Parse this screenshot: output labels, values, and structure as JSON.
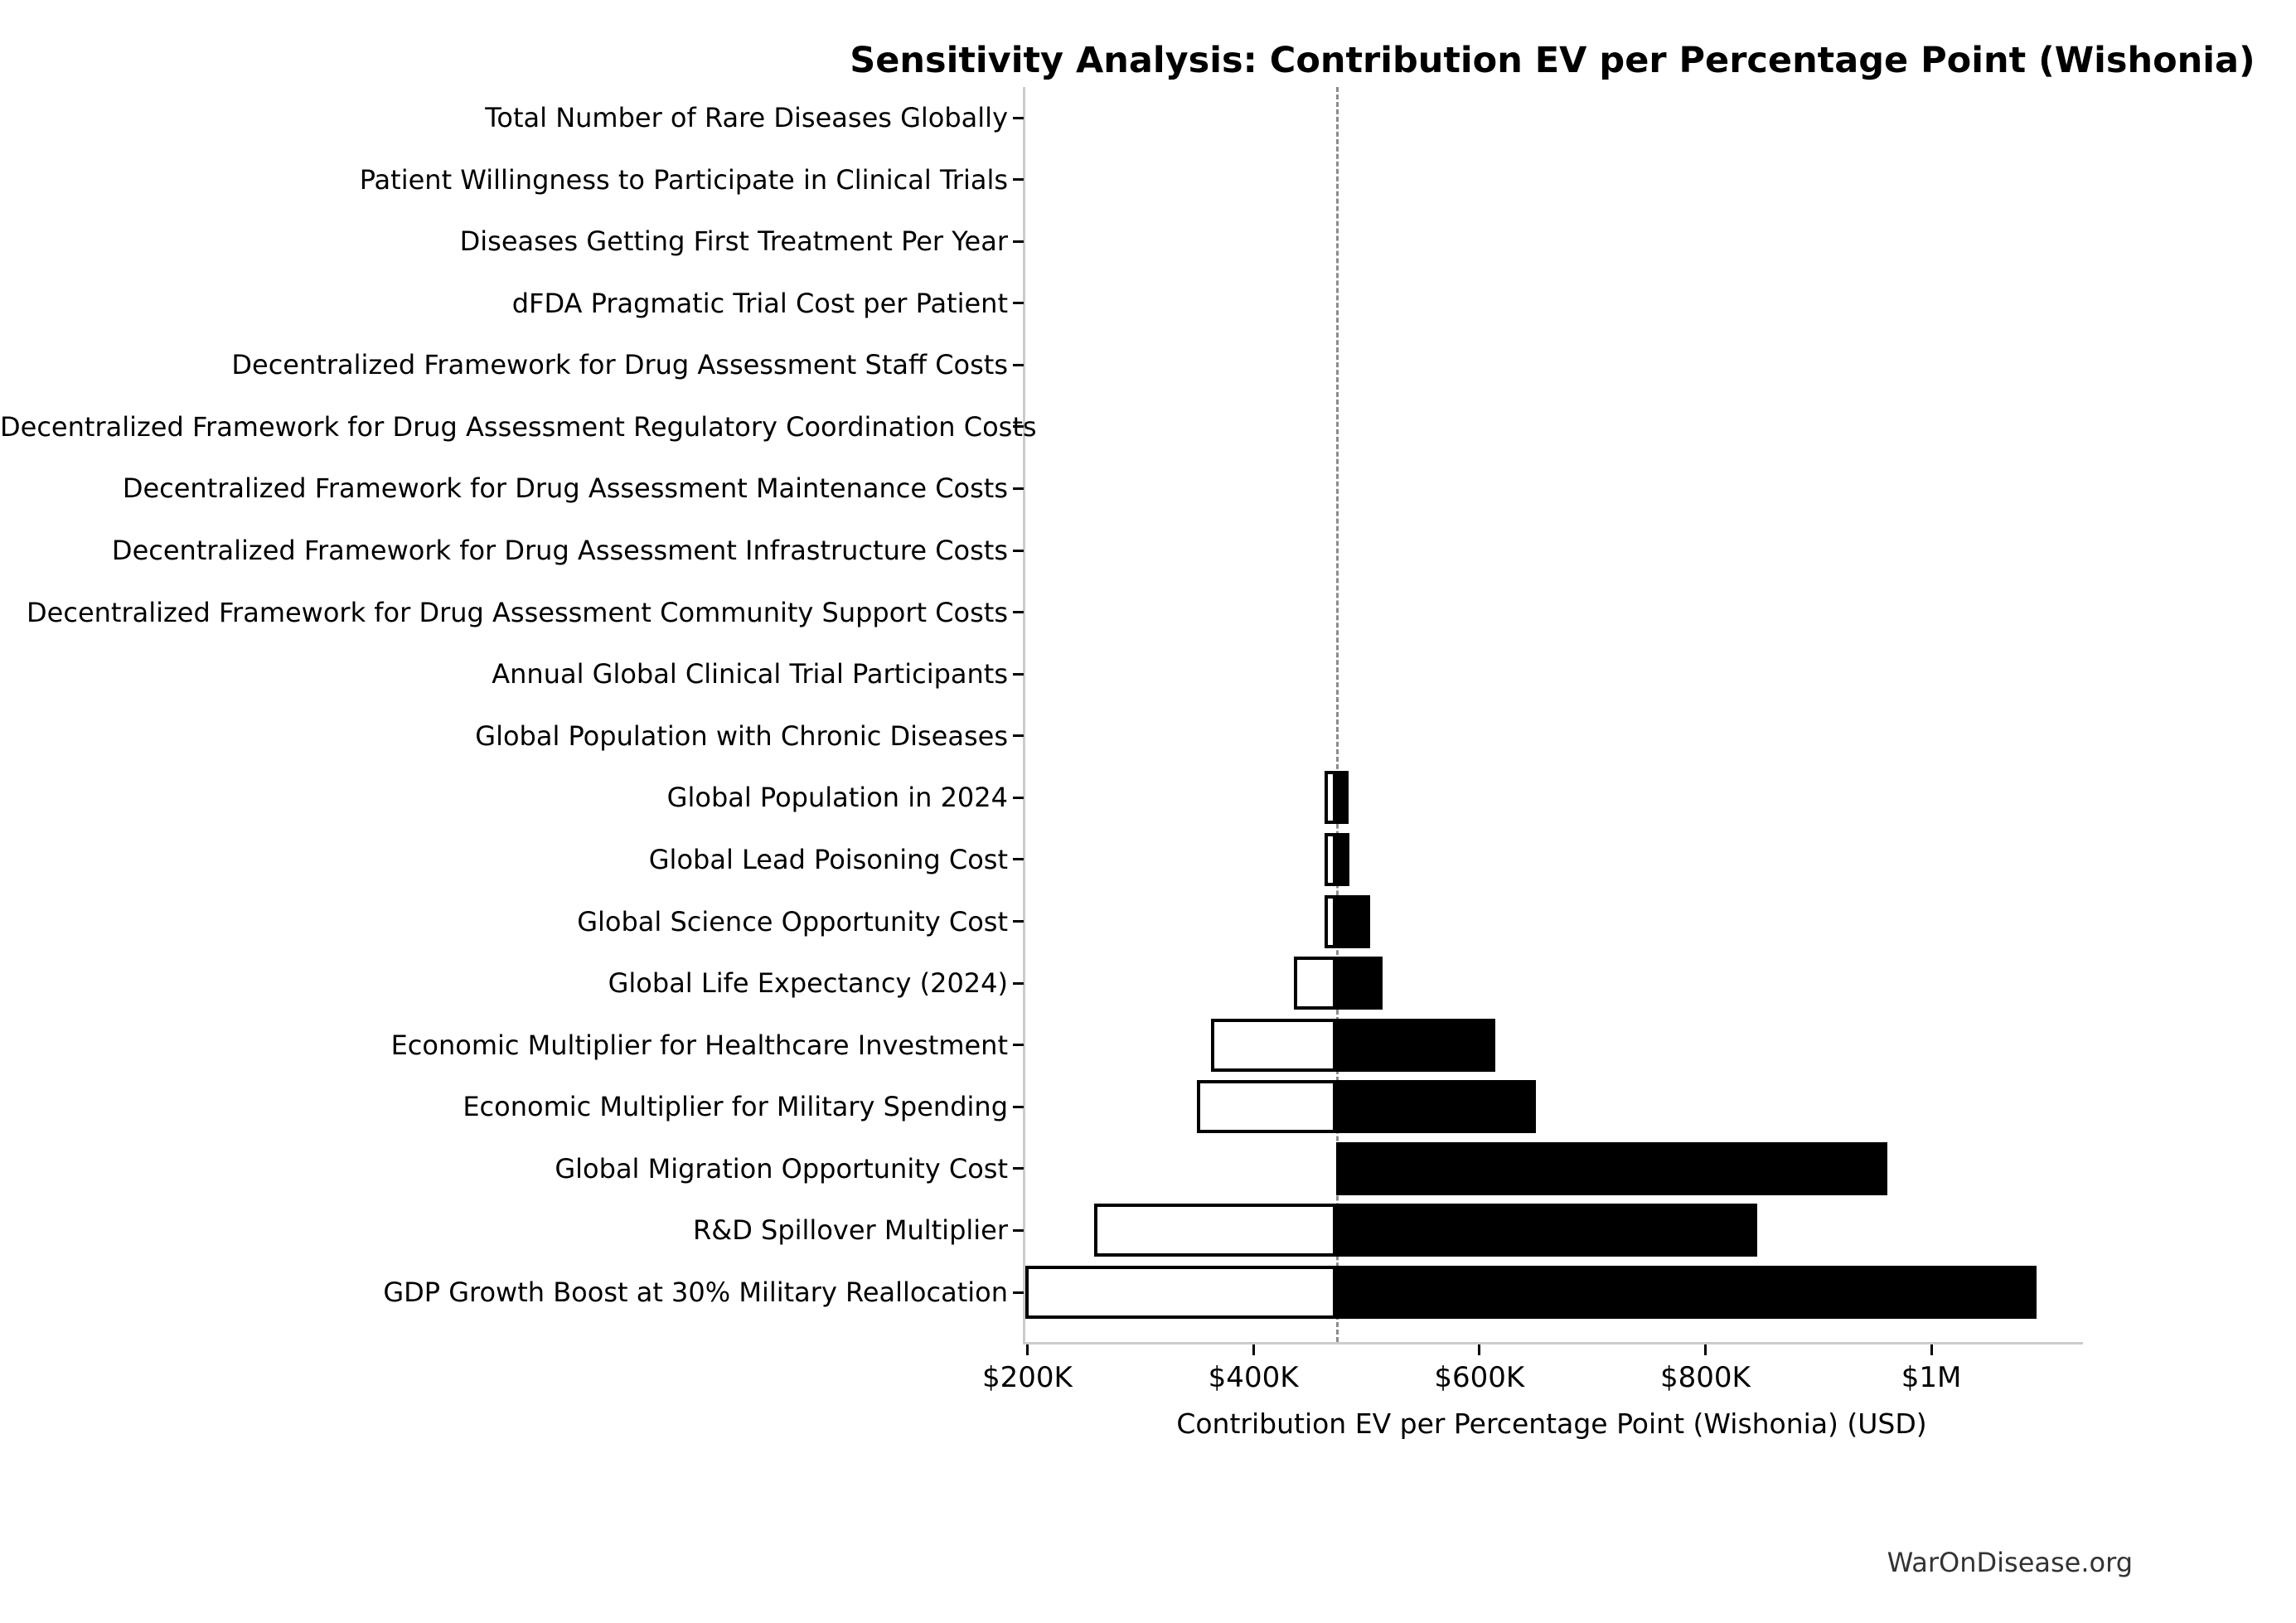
{
  "title": "Sensitivity Analysis: Contribution EV per Percentage Point (Wishonia)",
  "footer": "WarOnDisease.org",
  "chart_data": {
    "type": "bar",
    "subtype": "tornado",
    "title": "Sensitivity Analysis: Contribution EV per Percentage Point (Wishonia)",
    "xlabel": "Contribution EV per Percentage Point (Wishonia) (USD)",
    "legend_position": "none",
    "grid": false,
    "baseline_value": 471000,
    "x_axis": {
      "min": 196000,
      "max": 1132000,
      "ticks": [
        {
          "value": 200000,
          "label": "$200K"
        },
        {
          "value": 400000,
          "label": "$400K"
        },
        {
          "value": 600000,
          "label": "$600K"
        },
        {
          "value": 800000,
          "label": "$800K"
        },
        {
          "value": 1000000,
          "label": "$1M"
        }
      ]
    },
    "categories": [
      "Total Number of Rare Diseases Globally",
      "Patient Willingness to Participate in Clinical Trials",
      "Diseases Getting First Treatment Per Year",
      "dFDA Pragmatic Trial Cost per Patient",
      "Decentralized Framework for Drug Assessment Staff Costs",
      "Decentralized Framework for Drug Assessment Regulatory Coordination Costs",
      "Decentralized Framework for Drug Assessment Maintenance Costs",
      "Decentralized Framework for Drug Assessment Infrastructure Costs",
      "Decentralized Framework for Drug Assessment Community Support Costs",
      "Annual Global Clinical Trial Participants",
      "Global Population with Chronic Diseases",
      "Global Population in 2024",
      "Global Lead Poisoning Cost",
      "Global Science Opportunity Cost",
      "Global Life Expectancy (2024)",
      "Economic Multiplier for Healthcare Investment",
      "Economic Multiplier for Military Spending",
      "Global Migration Opportunity Cost",
      "R&D Spillover Multiplier",
      "GDP Growth Boost at 30% Military Reallocation"
    ],
    "series": [
      {
        "name": "low",
        "color": "#ffffff",
        "edge_color": "#000000",
        "values": [
          471000,
          471000,
          471000,
          471000,
          471000,
          471000,
          471000,
          471000,
          471000,
          471000,
          471000,
          461000,
          461000,
          461000,
          434000,
          360000,
          348000,
          471000,
          257000,
          196000
        ]
      },
      {
        "name": "high",
        "color": "#000000",
        "edge_color": "#000000",
        "values": [
          471000,
          471000,
          471000,
          471000,
          471000,
          471000,
          471000,
          471000,
          471000,
          471000,
          471000,
          482000,
          483000,
          501000,
          512000,
          612000,
          648000,
          959000,
          844000,
          1091000
        ]
      }
    ],
    "colors": {
      "bar_high": "#000000",
      "bar_low_fill": "#ffffff",
      "bar_low_edge": "#000000",
      "baseline_dash": "#8c8c8c",
      "spine": "#cccccc",
      "text": "#000000",
      "footer_text": "#333333"
    }
  }
}
